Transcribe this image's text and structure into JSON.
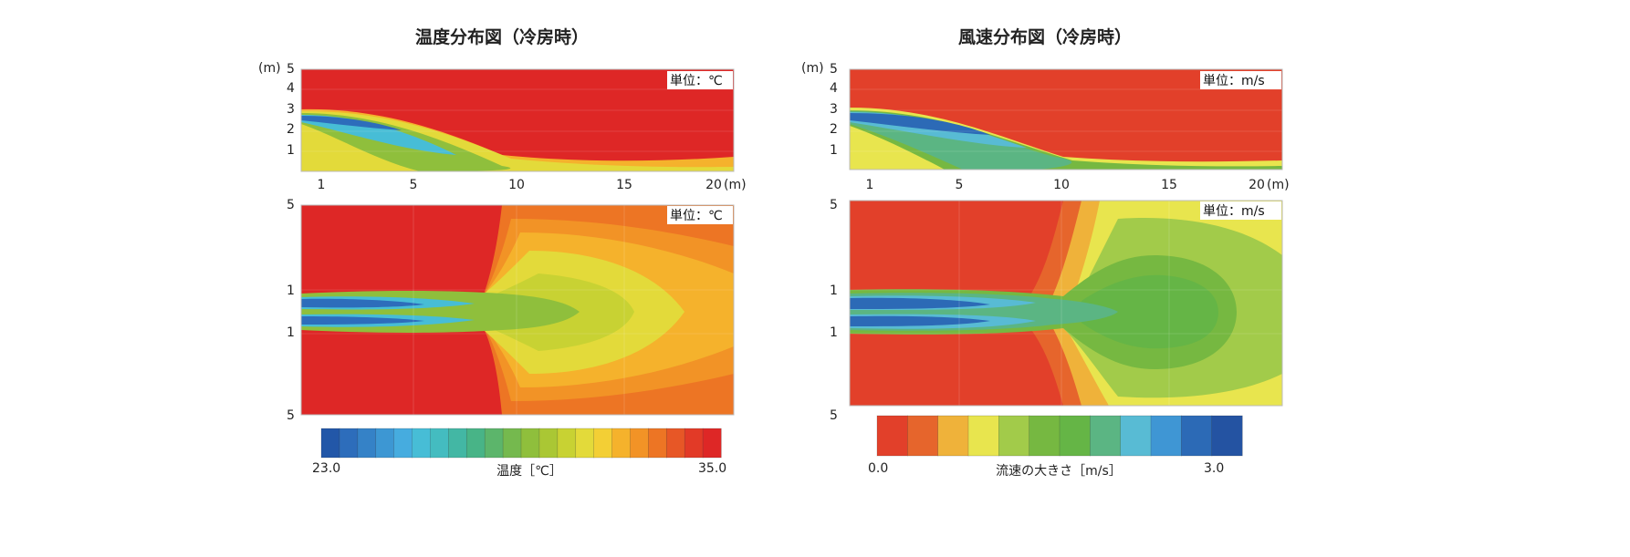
{
  "colors": {
    "temp_scale": [
      "#2257a8",
      "#2d6dbb",
      "#3582c7",
      "#3d97d3",
      "#46acdf",
      "#47bdd6",
      "#44bcc0",
      "#43b7a4",
      "#48b487",
      "#5cb56b",
      "#75b94e",
      "#8fbf3c",
      "#aac734",
      "#c8d233",
      "#e3da3a",
      "#f3cf35",
      "#f5b22c",
      "#f29326",
      "#ed7524",
      "#e75726",
      "#e23a27",
      "#de2726"
    ],
    "wind_scale": [
      "#e2402a",
      "#e6652c",
      "#efb23a",
      "#e8e54e",
      "#a2cb4a",
      "#76b841",
      "#65b546",
      "#5bb583",
      "#58bbd4",
      "#3f96d4",
      "#2c6ab6",
      "#2453a2"
    ]
  },
  "chart_data": [
    {
      "type": "heatmap",
      "title": "温度分布図（冷房時）",
      "unit_badge": "単位：℃",
      "colorbar": {
        "min": "23.0",
        "max": "35.0",
        "label": "温度［℃］"
      },
      "side_view": {
        "y_unit": "(m)",
        "y_ticks": [
          "5",
          "4",
          "3",
          "2",
          "1"
        ],
        "x_ticks": [
          "1",
          "5",
          "10",
          "15",
          "20"
        ],
        "x_unit": "(m)",
        "jet": {
          "outlet_height": 2.6,
          "end_height": 0.6
        }
      },
      "plan_view": {
        "y_ticks": [
          "5",
          "1",
          "1",
          "5"
        ]
      }
    },
    {
      "type": "heatmap",
      "title": "風速分布図（冷房時）",
      "unit_badge": "単位：m/s",
      "colorbar": {
        "min": "0.0",
        "max": "3.0",
        "label": "流速の大きさ［m/s］"
      },
      "side_view": {
        "y_unit": "(m)",
        "y_ticks": [
          "5",
          "4",
          "3",
          "2",
          "1"
        ],
        "x_ticks": [
          "1",
          "5",
          "10",
          "15",
          "20"
        ],
        "x_unit": "(m)",
        "jet": {
          "outlet_height": 2.6,
          "end_height": 0.3
        }
      },
      "plan_view": {
        "y_ticks": [
          "5",
          "1",
          "1",
          "5"
        ]
      }
    }
  ]
}
